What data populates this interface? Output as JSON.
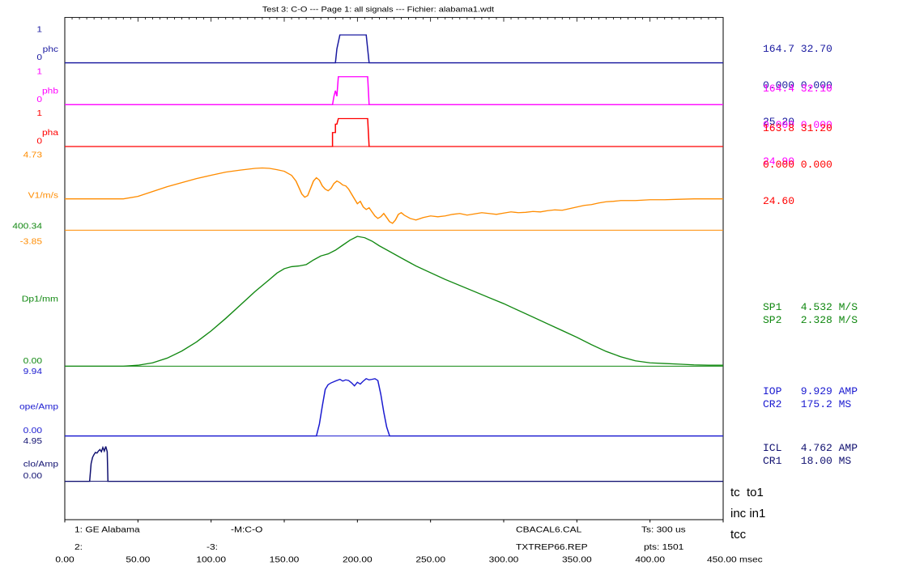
{
  "title": "Test 3: C-O --- Page 1: all signals --- Fichier: alabama1.wdt",
  "colors": {
    "phc": "#1a1aa0",
    "phb": "#ff00ff",
    "pha": "#ff0000",
    "velocity": "#ff8c00",
    "displacement": "#118811",
    "open_current": "#1a1ad0",
    "close_current": "#101070",
    "frame": "#000000"
  },
  "chart_data": {
    "type": "line",
    "xlabel": "msec",
    "xlim": [
      0,
      450
    ],
    "x_ticks": [
      "0.00",
      "50.00",
      "100.00",
      "150.00",
      "200.00",
      "250.00",
      "300.00",
      "350.00",
      "400.00",
      "450.00"
    ],
    "tracks": [
      {
        "name": "phc",
        "max_label": "1",
        "min_label": "0",
        "ylim": [
          0,
          1
        ],
        "color": "#1a1aa0",
        "points": [
          [
            0,
            0
          ],
          [
            185,
            0
          ],
          [
            186,
            0.5
          ],
          [
            188,
            1
          ],
          [
            206,
            1
          ],
          [
            208,
            0
          ],
          [
            450,
            0
          ]
        ]
      },
      {
        "name": "phb",
        "max_label": "1",
        "min_label": "0",
        "ylim": [
          0,
          1
        ],
        "color": "#ff00ff",
        "points": [
          [
            0,
            0
          ],
          [
            183,
            0
          ],
          [
            184,
            0.3
          ],
          [
            185,
            0.5
          ],
          [
            186,
            0.3
          ],
          [
            187,
            1
          ],
          [
            207,
            1
          ],
          [
            208,
            0
          ],
          [
            450,
            0
          ]
        ]
      },
      {
        "name": "pha",
        "max_label": "1",
        "min_label": "0",
        "ylim": [
          0,
          1
        ],
        "color": "#ff0000",
        "points": [
          [
            0,
            0
          ],
          [
            183,
            0
          ],
          [
            183,
            0.5
          ],
          [
            185,
            0.5
          ],
          [
            185,
            0.8
          ],
          [
            186,
            0.8
          ],
          [
            187,
            1
          ],
          [
            207,
            1
          ],
          [
            208,
            0
          ],
          [
            450,
            0
          ]
        ]
      },
      {
        "name": "V1/m/s",
        "max_label": "4.73",
        "min_label": "-3.85",
        "ylim": [
          -3.85,
          4.73
        ],
        "color": "#ff8c00",
        "points": [
          [
            0,
            0
          ],
          [
            40,
            0
          ],
          [
            50,
            0.3
          ],
          [
            60,
            0.9
          ],
          [
            70,
            1.5
          ],
          [
            80,
            2.0
          ],
          [
            90,
            2.5
          ],
          [
            100,
            2.9
          ],
          [
            110,
            3.3
          ],
          [
            120,
            3.55
          ],
          [
            130,
            3.75
          ],
          [
            135,
            3.8
          ],
          [
            140,
            3.75
          ],
          [
            145,
            3.6
          ],
          [
            150,
            3.4
          ],
          [
            155,
            2.9
          ],
          [
            158,
            2.2
          ],
          [
            160,
            1.4
          ],
          [
            162,
            0.6
          ],
          [
            164,
            0.2
          ],
          [
            166,
            0.4
          ],
          [
            168,
            1.3
          ],
          [
            170,
            2.2
          ],
          [
            172,
            2.6
          ],
          [
            174,
            2.3
          ],
          [
            176,
            1.6
          ],
          [
            178,
            1.2
          ],
          [
            180,
            1.0
          ],
          [
            182,
            1.3
          ],
          [
            184,
            1.9
          ],
          [
            186,
            2.2
          ],
          [
            188,
            2.0
          ],
          [
            190,
            1.7
          ],
          [
            192,
            1.6
          ],
          [
            194,
            1.2
          ],
          [
            196,
            0.6
          ],
          [
            198,
            0.0
          ],
          [
            200,
            -0.6
          ],
          [
            202,
            -0.3
          ],
          [
            204,
            -1.0
          ],
          [
            206,
            -1.3
          ],
          [
            208,
            -1.1
          ],
          [
            210,
            -1.6
          ],
          [
            212,
            -2.1
          ],
          [
            214,
            -2.4
          ],
          [
            216,
            -2.2
          ],
          [
            218,
            -1.8
          ],
          [
            220,
            -2.3
          ],
          [
            222,
            -2.8
          ],
          [
            224,
            -3.0
          ],
          [
            226,
            -2.6
          ],
          [
            228,
            -1.9
          ],
          [
            230,
            -1.7
          ],
          [
            232,
            -2.0
          ],
          [
            236,
            -2.4
          ],
          [
            240,
            -2.6
          ],
          [
            245,
            -2.3
          ],
          [
            250,
            -2.1
          ],
          [
            255,
            -2.2
          ],
          [
            260,
            -2.1
          ],
          [
            265,
            -1.9
          ],
          [
            270,
            -1.8
          ],
          [
            275,
            -2.0
          ],
          [
            280,
            -1.85
          ],
          [
            285,
            -1.7
          ],
          [
            290,
            -1.8
          ],
          [
            295,
            -1.9
          ],
          [
            300,
            -1.75
          ],
          [
            305,
            -1.6
          ],
          [
            310,
            -1.7
          ],
          [
            315,
            -1.65
          ],
          [
            320,
            -1.55
          ],
          [
            325,
            -1.6
          ],
          [
            330,
            -1.45
          ],
          [
            335,
            -1.35
          ],
          [
            340,
            -1.4
          ],
          [
            345,
            -1.2
          ],
          [
            350,
            -1.0
          ],
          [
            355,
            -0.8
          ],
          [
            360,
            -0.7
          ],
          [
            365,
            -0.5
          ],
          [
            370,
            -0.35
          ],
          [
            375,
            -0.3
          ],
          [
            380,
            -0.2
          ],
          [
            390,
            -0.2
          ],
          [
            400,
            -0.1
          ],
          [
            410,
            -0.1
          ],
          [
            420,
            -0.05
          ],
          [
            430,
            0.0
          ],
          [
            440,
            0.0
          ],
          [
            450,
            0.0
          ]
        ]
      },
      {
        "name": "Dp1/mm",
        "max_label": "400.34",
        "min_label": "0.00",
        "ylim": [
          0,
          400.34
        ],
        "color": "#118811",
        "points": [
          [
            0,
            0
          ],
          [
            40,
            0
          ],
          [
            50,
            3
          ],
          [
            60,
            10
          ],
          [
            70,
            24
          ],
          [
            80,
            45
          ],
          [
            90,
            72
          ],
          [
            100,
            105
          ],
          [
            110,
            142
          ],
          [
            120,
            182
          ],
          [
            130,
            222
          ],
          [
            140,
            258
          ],
          [
            145,
            277
          ],
          [
            150,
            290
          ],
          [
            155,
            296
          ],
          [
            160,
            298
          ],
          [
            165,
            302
          ],
          [
            170,
            316
          ],
          [
            175,
            328
          ],
          [
            180,
            334
          ],
          [
            185,
            345
          ],
          [
            190,
            360
          ],
          [
            195,
            375
          ],
          [
            200,
            386
          ],
          [
            205,
            382
          ],
          [
            210,
            372
          ],
          [
            215,
            358
          ],
          [
            220,
            346
          ],
          [
            230,
            322
          ],
          [
            240,
            298
          ],
          [
            250,
            278
          ],
          [
            260,
            258
          ],
          [
            270,
            240
          ],
          [
            280,
            222
          ],
          [
            290,
            204
          ],
          [
            300,
            186
          ],
          [
            310,
            166
          ],
          [
            320,
            146
          ],
          [
            330,
            126
          ],
          [
            340,
            106
          ],
          [
            350,
            86
          ],
          [
            360,
            64
          ],
          [
            370,
            44
          ],
          [
            380,
            28
          ],
          [
            390,
            16
          ],
          [
            400,
            10
          ],
          [
            410,
            8
          ],
          [
            420,
            6
          ],
          [
            430,
            4
          ],
          [
            440,
            3
          ],
          [
            450,
            3
          ]
        ]
      },
      {
        "name": "ope/Amp",
        "max_label": "9.94",
        "min_label": "0.00",
        "ylim": [
          0,
          9.94
        ],
        "color": "#1a1ad0",
        "points": [
          [
            0,
            0
          ],
          [
            172,
            0
          ],
          [
            174,
            2
          ],
          [
            176,
            5
          ],
          [
            178,
            7.8
          ],
          [
            180,
            8.6
          ],
          [
            182,
            8.9
          ],
          [
            185,
            9.2
          ],
          [
            188,
            9.5
          ],
          [
            190,
            9.2
          ],
          [
            192,
            9.4
          ],
          [
            194,
            9.3
          ],
          [
            196,
            8.9
          ],
          [
            198,
            8.4
          ],
          [
            200,
            9.0
          ],
          [
            202,
            8.7
          ],
          [
            204,
            9.2
          ],
          [
            206,
            9.6
          ],
          [
            208,
            9.4
          ],
          [
            210,
            9.5
          ],
          [
            212,
            9.6
          ],
          [
            214,
            9.3
          ],
          [
            216,
            7
          ],
          [
            218,
            4
          ],
          [
            220,
            1.5
          ],
          [
            222,
            0
          ],
          [
            450,
            0
          ]
        ]
      },
      {
        "name": "clo/Amp",
        "max_label": "4.95",
        "min_label": "0.00",
        "ylim": [
          0,
          4.95
        ],
        "color": "#101070",
        "points": [
          [
            0,
            0
          ],
          [
            17,
            0
          ],
          [
            18,
            2.5
          ],
          [
            19,
            3.4
          ],
          [
            20,
            3.8
          ],
          [
            21,
            4.1
          ],
          [
            22,
            4.0
          ],
          [
            23,
            4.3
          ],
          [
            24,
            4.5
          ],
          [
            25,
            4.2
          ],
          [
            26,
            4.8
          ],
          [
            27,
            4.3
          ],
          [
            28,
            4.95
          ],
          [
            29,
            4.2
          ],
          [
            29.5,
            0
          ],
          [
            450,
            0
          ]
        ]
      }
    ]
  },
  "readouts": {
    "phase_columns": [
      {
        "color": "#1a1aa0",
        "lines": [
          "164.7 32.70",
          "0.000 0.000",
          "25.20"
        ]
      },
      {
        "color": "#ff00ff",
        "lines": [
          "164.4 32.10",
          "0.000 0.000",
          "24.90"
        ]
      },
      {
        "color": "#ff0000",
        "lines": [
          "163.8 31.20",
          "0.000 0.000",
          "24.60"
        ]
      }
    ],
    "sp1": "SP1   4.532 M/S",
    "sp2": "SP2   2.328 M/S",
    "iop": "IOP   9.929 AMP",
    "cr2": "CR2   175.2 MS",
    "icl": "ICL   4.762 AMP",
    "cr1": "CR1   18.00 MS"
  },
  "footer": {
    "row1": {
      "col1": "1: GE Alabama",
      "col2": "-M:C-O",
      "col3": "CBACAL6.CAL",
      "col4": "Ts: 300 us"
    },
    "row2": {
      "col1": "2:",
      "col2": "-3:",
      "col3": "TXTREP66.REP",
      "col4": "pts: 1501"
    },
    "side": [
      "tc  to1",
      "inc in1",
      "tcc"
    ]
  }
}
